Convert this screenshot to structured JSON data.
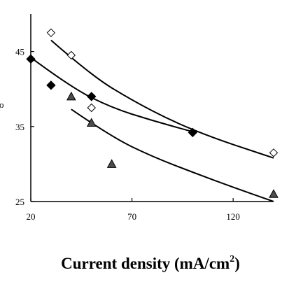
{
  "chart_data": {
    "type": "scatter",
    "title": "",
    "xlabel": "Current density (mA/cm",
    "xlabel_sup": "2",
    "xlabel_close": ")",
    "ylabel_fragment": "ο",
    "xlim": [
      20,
      140
    ],
    "ylim": [
      25,
      50
    ],
    "xticks": [
      20,
      70,
      120
    ],
    "yticks": [
      25,
      35,
      45
    ],
    "grid": false,
    "legend": "none",
    "series": [
      {
        "marker": "open-diamond",
        "points": [
          [
            30,
            47.5
          ],
          [
            40,
            44.5
          ],
          [
            50,
            37.5
          ],
          [
            140,
            31.5
          ]
        ],
        "trend": [
          [
            30,
            46.5
          ],
          [
            50,
            41.8
          ],
          [
            70,
            38.5
          ],
          [
            90,
            35.7
          ],
          [
            110,
            33.5
          ],
          [
            130,
            31.7
          ],
          [
            140,
            30.8
          ]
        ]
      },
      {
        "marker": "filled-diamond",
        "points": [
          [
            20,
            44
          ],
          [
            30,
            40.5
          ],
          [
            50,
            39
          ],
          [
            100,
            34.2
          ]
        ],
        "trend": [
          [
            20,
            44.2
          ],
          [
            40,
            40.2
          ],
          [
            60,
            37.5
          ],
          [
            80,
            35.8
          ],
          [
            100,
            34.3
          ]
        ]
      },
      {
        "marker": "filled-triangle",
        "points": [
          [
            40,
            39
          ],
          [
            50,
            35.5
          ],
          [
            60,
            30
          ],
          [
            140,
            26
          ]
        ],
        "trend": [
          [
            40,
            37.3
          ],
          [
            60,
            33.6
          ],
          [
            80,
            31
          ],
          [
            100,
            28.9
          ],
          [
            120,
            26.9
          ],
          [
            140,
            25
          ]
        ]
      }
    ]
  }
}
